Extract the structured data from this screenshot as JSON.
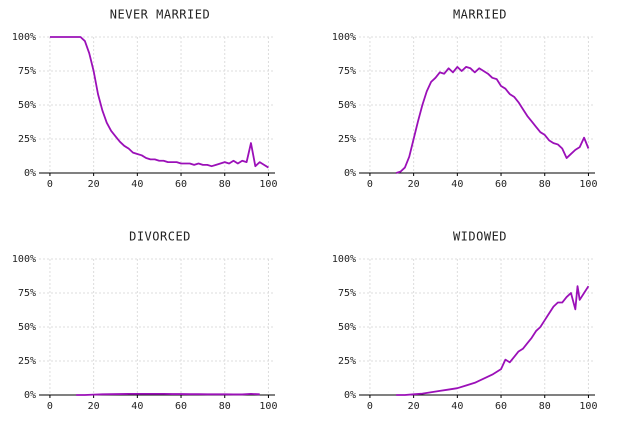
{
  "chart_data": [
    {
      "type": "line",
      "title": "NEVER MARRIED",
      "color": "#9b10b8",
      "grid": true,
      "xlim": [
        -5,
        103
      ],
      "ylim": [
        0,
        100
      ],
      "xticks": [
        0,
        20,
        40,
        60,
        80,
        100
      ],
      "yticks": [
        {
          "value": 0,
          "label": "0%"
        },
        {
          "value": 25,
          "label": "25%"
        },
        {
          "value": 50,
          "label": "50%"
        },
        {
          "value": 75,
          "label": "75%"
        },
        {
          "value": 100,
          "label": "100%"
        }
      ],
      "x": [
        0,
        2,
        4,
        6,
        8,
        10,
        12,
        14,
        16,
        18,
        20,
        22,
        24,
        26,
        28,
        30,
        32,
        34,
        36,
        38,
        40,
        42,
        44,
        46,
        48,
        50,
        52,
        54,
        56,
        58,
        60,
        62,
        64,
        66,
        68,
        70,
        72,
        74,
        76,
        78,
        80,
        82,
        84,
        86,
        88,
        90,
        92,
        94,
        96,
        98,
        100
      ],
      "values": [
        100,
        100,
        100,
        100,
        100,
        100,
        100,
        100,
        97,
        88,
        75,
        58,
        46,
        37,
        31,
        27,
        23,
        20,
        18,
        15,
        14,
        13,
        11,
        10,
        10,
        9,
        9,
        8,
        8,
        8,
        7,
        7,
        7,
        6,
        7,
        6,
        6,
        5,
        6,
        7,
        8,
        7,
        9,
        7,
        9,
        8,
        22,
        5,
        8,
        6,
        4
      ]
    },
    {
      "type": "line",
      "title": "MARRIED",
      "color": "#9b10b8",
      "grid": true,
      "xlim": [
        -5,
        103
      ],
      "ylim": [
        0,
        100
      ],
      "xticks": [
        0,
        20,
        40,
        60,
        80,
        100
      ],
      "yticks": [
        {
          "value": 0,
          "label": "0%"
        },
        {
          "value": 25,
          "label": "25%"
        },
        {
          "value": 50,
          "label": "50%"
        },
        {
          "value": 75,
          "label": "75%"
        },
        {
          "value": 100,
          "label": "100%"
        }
      ],
      "x": [
        12,
        14,
        16,
        18,
        20,
        22,
        24,
        26,
        28,
        30,
        32,
        34,
        36,
        38,
        40,
        42,
        44,
        46,
        48,
        50,
        52,
        54,
        56,
        58,
        60,
        62,
        64,
        66,
        68,
        70,
        72,
        74,
        76,
        78,
        80,
        82,
        84,
        86,
        88,
        90,
        92,
        94,
        96,
        98,
        100
      ],
      "values": [
        0,
        1,
        4,
        12,
        25,
        38,
        50,
        60,
        67,
        70,
        74,
        73,
        77,
        74,
        78,
        75,
        78,
        77,
        74,
        77,
        75,
        73,
        70,
        69,
        64,
        62,
        58,
        56,
        52,
        47,
        42,
        38,
        34,
        30,
        28,
        24,
        22,
        21,
        18,
        11,
        14,
        17,
        19,
        26,
        18
      ]
    },
    {
      "type": "line",
      "title": "DIVORCED",
      "color": "#9b10b8",
      "grid": true,
      "xlim": [
        -5,
        103
      ],
      "ylim": [
        0,
        100
      ],
      "xticks": [
        0,
        20,
        40,
        60,
        80,
        100
      ],
      "yticks": [
        {
          "value": 0,
          "label": "0%"
        },
        {
          "value": 25,
          "label": "25%"
        },
        {
          "value": 50,
          "label": "50%"
        },
        {
          "value": 75,
          "label": "75%"
        },
        {
          "value": 100,
          "label": "100%"
        }
      ],
      "x": [
        12,
        16,
        20,
        24,
        28,
        32,
        36,
        40,
        44,
        48,
        52,
        56,
        60,
        64,
        68,
        72,
        76,
        80,
        84,
        88,
        92,
        96
      ],
      "values": [
        0,
        0,
        0.3,
        0.5,
        0.6,
        0.7,
        0.8,
        0.8,
        0.8,
        0.8,
        0.8,
        0.7,
        0.7,
        0.6,
        0.6,
        0.5,
        0.5,
        0.5,
        0.4,
        0.4,
        0.8,
        0.5
      ]
    },
    {
      "type": "line",
      "title": "WIDOWED",
      "color": "#9b10b8",
      "grid": true,
      "xlim": [
        -5,
        103
      ],
      "ylim": [
        0,
        100
      ],
      "xticks": [
        0,
        20,
        40,
        60,
        80,
        100
      ],
      "yticks": [
        {
          "value": 0,
          "label": "0%"
        },
        {
          "value": 25,
          "label": "25%"
        },
        {
          "value": 50,
          "label": "50%"
        },
        {
          "value": 75,
          "label": "75%"
        },
        {
          "value": 100,
          "label": "100%"
        }
      ],
      "x": [
        12,
        16,
        20,
        24,
        28,
        32,
        36,
        40,
        44,
        48,
        52,
        56,
        60,
        62,
        64,
        66,
        68,
        70,
        72,
        74,
        76,
        78,
        80,
        82,
        84,
        86,
        88,
        90,
        92,
        94,
        95,
        96,
        98,
        100
      ],
      "values": [
        0,
        0,
        0.5,
        1,
        2,
        3,
        4,
        5,
        7,
        9,
        12,
        15,
        19,
        26,
        24,
        28,
        32,
        34,
        38,
        42,
        47,
        50,
        55,
        60,
        65,
        68,
        68,
        72,
        75,
        63,
        80,
        70,
        75,
        80
      ]
    }
  ]
}
